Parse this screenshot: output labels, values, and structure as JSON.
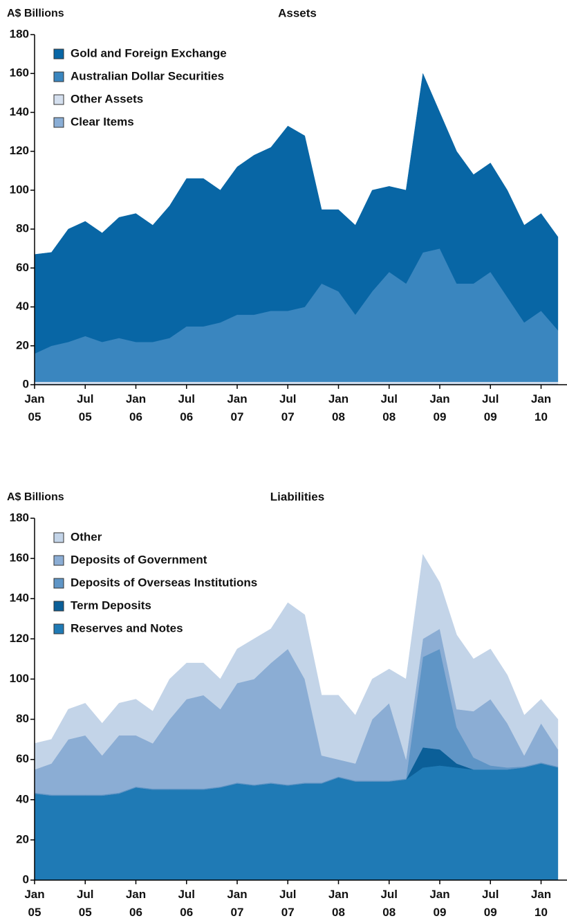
{
  "chart_data": [
    {
      "type": "stacked_area",
      "title": "Assets",
      "y_label": "A$ Billions",
      "x": [
        "2005-01",
        "2005-03",
        "2005-05",
        "2005-07",
        "2005-09",
        "2005-11",
        "2006-01",
        "2006-03",
        "2006-05",
        "2006-07",
        "2006-09",
        "2006-11",
        "2007-01",
        "2007-03",
        "2007-05",
        "2007-07",
        "2007-09",
        "2007-11",
        "2008-01",
        "2008-03",
        "2008-05",
        "2008-07",
        "2008-09",
        "2008-11",
        "2009-01",
        "2009-03",
        "2009-05",
        "2009-07",
        "2009-09",
        "2009-11",
        "2010-01",
        "2010-03"
      ],
      "series": [
        {
          "name": "Gold and Foreign Exchange",
          "color": "#0866a5",
          "values": [
            51,
            48,
            58,
            59,
            56,
            62,
            66,
            60,
            68,
            76,
            76,
            68,
            76,
            82,
            84,
            95,
            88,
            38,
            42,
            46,
            52,
            44,
            48,
            92,
            70,
            68,
            56,
            56,
            55,
            50,
            50,
            48
          ]
        },
        {
          "name": "Australian Dollar Securities",
          "color": "#3a86bf",
          "values": [
            14.5,
            18.5,
            20.5,
            23.5,
            20.5,
            22.5,
            20.5,
            20.5,
            22.5,
            28.5,
            28.5,
            30.5,
            34.5,
            34.5,
            36.5,
            36.5,
            38.5,
            50.5,
            46.5,
            34.5,
            46.5,
            56.5,
            50.5,
            66.5,
            68.5,
            50.5,
            50.5,
            56.5,
            43.5,
            30.5,
            36.5,
            26.5
          ]
        },
        {
          "name": "Other Assets",
          "color": "#d4dfee",
          "values": [
            1,
            1,
            1,
            1,
            1,
            1,
            1,
            1,
            1,
            1,
            1,
            1,
            1,
            1,
            1,
            1,
            1,
            1,
            1,
            1,
            1,
            1,
            1,
            1,
            1,
            1,
            1,
            1,
            1,
            1,
            1,
            1
          ]
        },
        {
          "name": "Clear Items",
          "color": "#8aaed6",
          "values": [
            0.5,
            0.5,
            0.5,
            0.5,
            0.5,
            0.5,
            0.5,
            0.5,
            0.5,
            0.5,
            0.5,
            0.5,
            0.5,
            0.5,
            0.5,
            0.5,
            0.5,
            0.5,
            0.5,
            0.5,
            0.5,
            0.5,
            0.5,
            0.5,
            0.5,
            0.5,
            0.5,
            0.5,
            0.5,
            0.5,
            0.5,
            0.5
          ]
        }
      ],
      "ylim": [
        0,
        180
      ],
      "yticks": [
        0,
        20,
        40,
        60,
        80,
        100,
        120,
        140,
        160,
        180
      ],
      "xticks": [
        {
          "value": "2005-01",
          "label": "Jan 05"
        },
        {
          "value": "2005-07",
          "label": "Jul 05"
        },
        {
          "value": "2006-01",
          "label": "Jan 06"
        },
        {
          "value": "2006-07",
          "label": "Jul 06"
        },
        {
          "value": "2007-01",
          "label": "Jan 07"
        },
        {
          "value": "2007-07",
          "label": "Jul 07"
        },
        {
          "value": "2008-01",
          "label": "Jan 08"
        },
        {
          "value": "2008-07",
          "label": "Jul 08"
        },
        {
          "value": "2009-01",
          "label": "Jan 09"
        },
        {
          "value": "2009-07",
          "label": "Jul 09"
        },
        {
          "value": "2010-01",
          "label": "Jan 10"
        }
      ],
      "legend": "upper left"
    },
    {
      "type": "stacked_area",
      "title": "Liabilities",
      "y_label": "A$ Billions",
      "x": [
        "2005-01",
        "2005-03",
        "2005-05",
        "2005-07",
        "2005-09",
        "2005-11",
        "2006-01",
        "2006-03",
        "2006-05",
        "2006-07",
        "2006-09",
        "2006-11",
        "2007-01",
        "2007-03",
        "2007-05",
        "2007-07",
        "2007-09",
        "2007-11",
        "2008-01",
        "2008-03",
        "2008-05",
        "2008-07",
        "2008-09",
        "2008-11",
        "2009-01",
        "2009-03",
        "2009-05",
        "2009-07",
        "2009-09",
        "2009-11",
        "2010-01",
        "2010-03"
      ],
      "series": [
        {
          "name": "Other",
          "color": "#c3d4e8",
          "values": [
            13,
            12,
            15,
            16,
            16,
            16,
            18,
            16,
            20,
            18,
            16,
            15,
            17,
            20,
            17,
            23,
            32,
            30,
            32,
            24,
            20,
            17,
            40,
            42,
            23,
            37,
            26,
            25,
            24,
            20,
            12,
            15
          ]
        },
        {
          "name": "Deposits of Government",
          "color": "#8badd4",
          "values": [
            11.5,
            15.5,
            27.5,
            29.5,
            19.5,
            28.5,
            25.5,
            22.5,
            34.5,
            44.5,
            46.5,
            38.5,
            49.5,
            52.5,
            59.5,
            67.5,
            51.5,
            13.5,
            8.5,
            8.5,
            30.5,
            38.5,
            9.5,
            9,
            10,
            9,
            23,
            33,
            22,
            5.5,
            19.5,
            8.5
          ]
        },
        {
          "name": "Deposits of Overseas Institutions",
          "color": "#5f95c6",
          "values": [
            0.5,
            0.5,
            0.5,
            0.5,
            0.5,
            0.5,
            0.5,
            0.5,
            0.5,
            0.5,
            0.5,
            0.5,
            0.5,
            0.5,
            0.5,
            0.5,
            0.5,
            0.5,
            0.5,
            0.5,
            0.5,
            0.5,
            0.5,
            45,
            50,
            18,
            6,
            2,
            1,
            0.5,
            0.5,
            0.5
          ]
        },
        {
          "name": "Term Deposits",
          "color": "#0b5f98",
          "values": [
            0,
            0,
            0,
            0,
            0,
            0,
            0,
            0,
            0,
            0,
            0,
            0,
            0,
            0,
            0,
            0,
            0,
            0,
            0,
            0,
            0,
            0,
            0,
            10,
            8,
            2,
            0,
            0,
            0,
            0,
            0,
            0
          ]
        },
        {
          "name": "Reserves and Notes",
          "color": "#1f7ab5",
          "values": [
            43,
            42,
            42,
            42,
            42,
            43,
            46,
            45,
            45,
            45,
            45,
            46,
            48,
            47,
            48,
            47,
            48,
            48,
            51,
            49,
            49,
            49,
            50,
            56,
            57,
            56,
            55,
            55,
            55,
            56,
            58,
            56
          ]
        }
      ],
      "ylim": [
        0,
        180
      ],
      "yticks": [
        0,
        20,
        40,
        60,
        80,
        100,
        120,
        140,
        160,
        180
      ],
      "xticks": [
        {
          "value": "2005-01",
          "label": "Jan 05"
        },
        {
          "value": "2005-07",
          "label": "Jul 05"
        },
        {
          "value": "2006-01",
          "label": "Jan 06"
        },
        {
          "value": "2006-07",
          "label": "Jul 06"
        },
        {
          "value": "2007-01",
          "label": "Jan 07"
        },
        {
          "value": "2007-07",
          "label": "Jul 07"
        },
        {
          "value": "2008-01",
          "label": "Jan 08"
        },
        {
          "value": "2008-07",
          "label": "Jul 08"
        },
        {
          "value": "2009-01",
          "label": "Jan 09"
        },
        {
          "value": "2009-07",
          "label": "Jul 09"
        },
        {
          "value": "2010-01",
          "label": "Jan 10"
        }
      ],
      "legend": "upper left"
    }
  ]
}
